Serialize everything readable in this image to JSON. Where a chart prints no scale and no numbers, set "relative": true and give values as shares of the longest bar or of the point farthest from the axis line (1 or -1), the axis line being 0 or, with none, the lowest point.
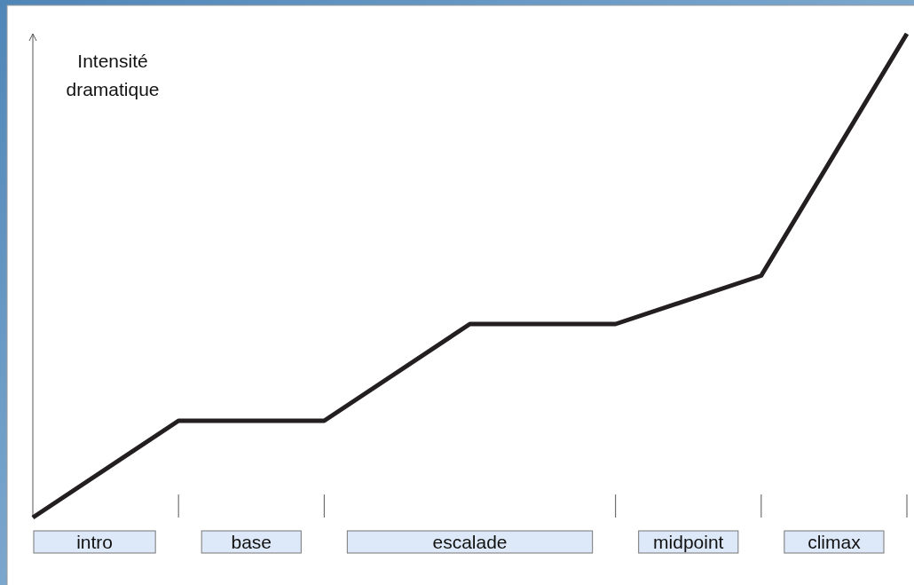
{
  "chart_data": {
    "type": "line",
    "ylabel": "Intensité dramatique",
    "relative": true,
    "categories": [
      null,
      null,
      null,
      null,
      null,
      null,
      null
    ],
    "series": [
      {
        "color": "#231f20",
        "values": [
          0,
          0.2,
          0.2,
          0.4,
          0.4,
          0.5,
          1
        ]
      }
    ],
    "annotations": [
      "intro",
      "base",
      "escalade",
      "midpoint",
      "climax"
    ],
    "marker": "none",
    "line_style": "solid"
  }
}
